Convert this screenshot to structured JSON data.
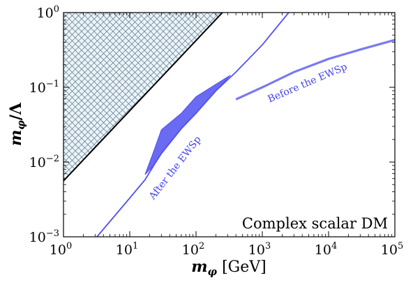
{
  "chart_data": {
    "type": "line",
    "xlabel_main": "m",
    "xlabel_sub": "φ",
    "xlabel_unit": " [GeV]",
    "ylabel_main": "m",
    "ylabel_sub": "φ",
    "ylabel_tail": "/Λ",
    "xscale": "log",
    "yscale": "log",
    "xlim": [
      1,
      100000
    ],
    "ylim": [
      0.001,
      1
    ],
    "grid": false,
    "x_ticks": [
      {
        "value": 1,
        "base": "10",
        "exp": "0"
      },
      {
        "value": 10,
        "base": "10",
        "exp": "1"
      },
      {
        "value": 100,
        "base": "10",
        "exp": "2"
      },
      {
        "value": 1000,
        "base": "10",
        "exp": "3"
      },
      {
        "value": 10000,
        "base": "10",
        "exp": "4"
      },
      {
        "value": 100000,
        "base": "10",
        "exp": "5"
      }
    ],
    "y_ticks": [
      {
        "value": 0.001,
        "base": "10",
        "exp": "−3"
      },
      {
        "value": 0.01,
        "base": "10",
        "exp": "−2"
      },
      {
        "value": 0.1,
        "base": "10",
        "exp": "−1"
      },
      {
        "value": 1,
        "base": "10",
        "exp": "0"
      }
    ],
    "panel_label": "Complex scalar DM",
    "excluded_region": {
      "boundary_x": [
        1,
        250
      ],
      "boundary_y": [
        0.0056,
        1
      ]
    },
    "series": [
      {
        "name": "After the EWSp",
        "x": [
          3.2,
          10,
          17,
          23,
          30,
          60,
          100,
          200,
          400,
          1000,
          2500
        ],
        "y": [
          0.001,
          0.0033,
          0.0058,
          0.009,
          0.013,
          0.028,
          0.045,
          0.09,
          0.16,
          0.37,
          1.0
        ]
      },
      {
        "name": "After the EWSp",
        "band_upper_x": [
          17,
          23,
          30,
          60,
          100,
          200,
          330
        ],
        "band_upper_y": [
          0.0068,
          0.014,
          0.027,
          0.045,
          0.075,
          0.11,
          0.145
        ],
        "band_lower_x": [
          17,
          23,
          30,
          60,
          100,
          200,
          330
        ],
        "band_lower_y": [
          0.0068,
          0.009,
          0.013,
          0.028,
          0.045,
          0.09,
          0.145
        ]
      },
      {
        "name": "Before the EWSp",
        "x": [
          400,
          1000,
          3000,
          10000,
          30000,
          100000
        ],
        "y": [
          0.069,
          0.1,
          0.16,
          0.24,
          0.32,
          0.43
        ]
      }
    ],
    "annotations": [
      "After the EWSp",
      "Before the EWSp"
    ],
    "colors": {
      "curve": "#5050f0",
      "band_fill": "#6a6af2",
      "hatch_bg": "#eaf4f8",
      "hatch_line": "#5b7287",
      "boundary": "#000000"
    }
  }
}
